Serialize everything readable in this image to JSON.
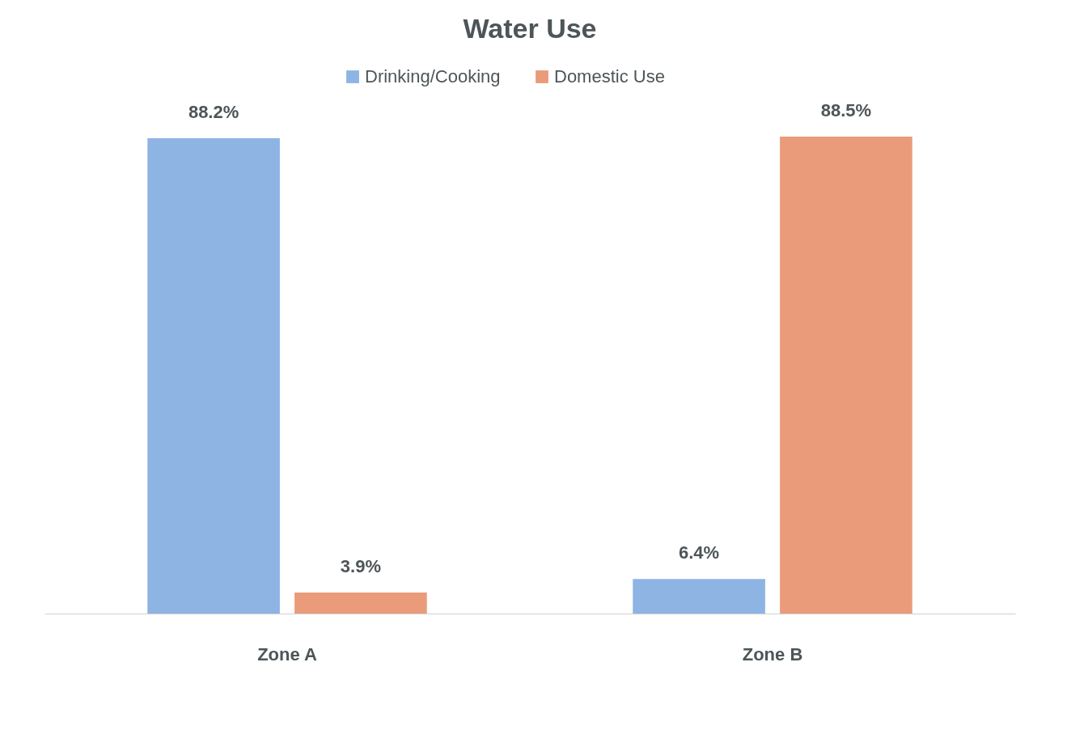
{
  "chart_data": {
    "type": "bar",
    "title": "Water Use",
    "categories": [
      "Zone A",
      "Zone B"
    ],
    "series": [
      {
        "name": "Drinking/Cooking",
        "color": "#8eb4e3",
        "values": [
          88.2,
          6.4
        ],
        "value_labels": [
          "88.2%",
          "6.4%"
        ]
      },
      {
        "name": "Domestic Use",
        "color": "#e99b7a",
        "values": [
          3.9,
          88.5
        ],
        "value_labels": [
          "3.9%",
          "88.5%"
        ]
      }
    ],
    "legend": "top",
    "grid": false
  }
}
